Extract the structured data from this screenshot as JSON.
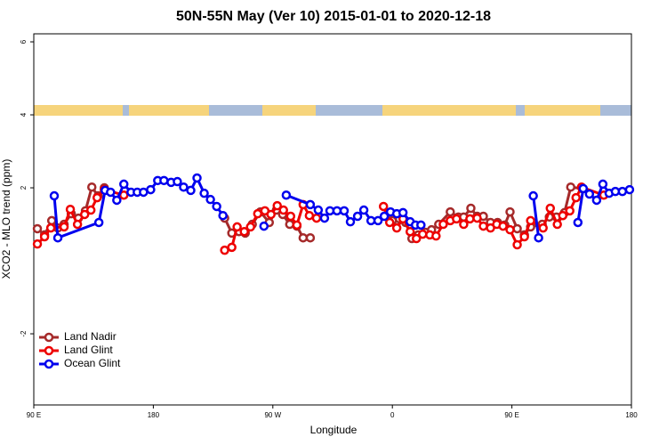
{
  "chart_data": {
    "type": "line",
    "title": "50N-55N May (Ver 10)   2015-01-01 to 2020-12-18",
    "x_label": "Longitude",
    "y_label": "XCO2 - MLO trend (ppm)",
    "xlim": [
      90,
      540
    ],
    "xticks": [
      {
        "value": 90,
        "label": "90 E"
      },
      {
        "value": 180,
        "label": "180"
      },
      {
        "value": 270,
        "label": "90 W"
      },
      {
        "value": 360,
        "label": "0"
      },
      {
        "value": 450,
        "label": "90 E"
      },
      {
        "value": 540,
        "label": "180"
      }
    ],
    "ylim": [
      -3.95,
      6.22
    ],
    "yticks": [
      -2,
      2,
      4,
      6
    ],
    "legend": "bottom-left",
    "series": [
      {
        "name": "Land Nadir",
        "color": "#a52a2a",
        "x": [
          92.7,
          98.1,
          103.5,
          108.1,
          112.8,
          118.2,
          123.6,
          128.9,
          133.7,
          138.4,
          143.1,
          null,
          233.7,
          239.1,
          244.5,
          249.2,
          254.5,
          260.6,
          267.3,
          272.7,
          277.4,
          282.7,
          288.1,
          292.8,
          298.2,
          null,
          354.6,
          360.0,
          365.3,
          370.0,
          374.7,
          379.5,
          384.8,
          389.5,
          394.9,
          403.6,
          409.7,
          413.7,
          419.1,
          423.8,
          428.5,
          433.9,
          439.2,
          444.6,
          448.6,
          454.0,
          459.4,
          464.1,
          472.8,
          478.2,
          483.6,
          489.6,
          494.3,
          503.0
        ],
        "values": [
          0.88,
          0.71,
          1.1,
          0.9,
          1.0,
          1.29,
          1.17,
          1.37,
          2.02,
          1.78,
          2.0,
          null,
          1.17,
          0.76,
          0.8,
          0.76,
          1.0,
          1.34,
          1.05,
          1.39,
          1.27,
          1.0,
          0.95,
          0.63,
          0.63,
          null,
          1.22,
          1.1,
          1.15,
          1.05,
          0.61,
          0.71,
          0.78,
          0.85,
          1.0,
          1.34,
          1.2,
          1.2,
          1.44,
          1.22,
          1.22,
          1.05,
          1.05,
          0.98,
          1.34,
          0.88,
          0.71,
          0.93,
          1.0,
          1.2,
          1.2,
          1.32,
          2.02,
          1.98
        ]
      },
      {
        "name": "Land Glint",
        "color": "#ee0000",
        "x": [
          92.7,
          98.1,
          102.8,
          112.8,
          117.5,
          122.9,
          128.3,
          133.0,
          137.7,
          143.1,
          157.8,
          null,
          233.7,
          239.1,
          243.1,
          248.5,
          253.2,
          258.6,
          264.0,
          268.6,
          273.3,
          278.0,
          283.4,
          288.1,
          292.8,
          297.5,
          302.9,
          null,
          353.3,
          358.0,
          363.3,
          368.0,
          373.4,
          378.1,
          382.8,
          388.2,
          392.9,
          398.3,
          403.6,
          408.3,
          413.7,
          418.4,
          423.8,
          428.5,
          433.9,
          438.6,
          443.3,
          448.6,
          454.0,
          459.4,
          464.1,
          473.5,
          478.9,
          484.2,
          488.3,
          493.6,
          498.3,
          502.4,
          519.2
        ],
        "values": [
          0.46,
          0.66,
          0.9,
          0.93,
          1.41,
          1.0,
          1.27,
          1.39,
          1.73,
          1.95,
          1.8,
          null,
          0.29,
          0.37,
          0.93,
          0.8,
          0.93,
          1.29,
          1.37,
          1.27,
          1.51,
          1.39,
          1.22,
          0.98,
          1.54,
          1.24,
          1.17,
          null,
          1.49,
          1.05,
          0.9,
          1.15,
          0.8,
          0.61,
          0.73,
          0.71,
          0.68,
          1.0,
          1.1,
          1.15,
          1.0,
          1.15,
          1.17,
          0.95,
          0.9,
          1.0,
          0.95,
          0.85,
          0.44,
          0.66,
          1.1,
          0.9,
          1.44,
          1.0,
          1.24,
          1.37,
          1.73,
          2.02,
          1.8
        ]
      },
      {
        "name": "Ocean Glint",
        "color": "#0000ee",
        "x": [
          105.4,
          108.1,
          139.0,
          143.7,
          147.8,
          152.5,
          157.8,
          163.2,
          167.9,
          172.6,
          178.0,
          183.3,
          188.0,
          193.4,
          198.1,
          202.8,
          208.2,
          212.9,
          218.3,
          223.0,
          227.7,
          232.4,
          null,
          263.3,
          null,
          280.1,
          298.2,
          304.2,
          308.9,
          313.0,
          318.3,
          323.7,
          328.4,
          333.8,
          338.5,
          343.9,
          349.2,
          353.9,
          358.6,
          363.3,
          368.0,
          373.4,
          377.4,
          381.5,
          null,
          466.1,
          470.1,
          null,
          499.7,
          503.7,
          508.4,
          513.8,
          518.5,
          523.2,
          527.9,
          533.2,
          538.6
        ],
        "values": [
          1.78,
          0.63,
          1.05,
          1.93,
          1.88,
          1.66,
          2.1,
          1.88,
          1.88,
          1.88,
          1.95,
          2.2,
          2.2,
          2.15,
          2.17,
          2.02,
          1.93,
          2.27,
          1.85,
          1.68,
          1.49,
          1.24,
          null,
          0.95,
          null,
          1.8,
          1.54,
          1.39,
          1.17,
          1.37,
          1.37,
          1.37,
          1.07,
          1.22,
          1.39,
          1.1,
          1.1,
          1.22,
          1.34,
          1.29,
          1.32,
          1.07,
          0.98,
          0.98,
          null,
          1.78,
          0.63,
          null,
          1.05,
          1.98,
          1.83,
          1.66,
          2.1,
          1.85,
          1.9,
          1.9,
          1.95
        ]
      }
    ]
  }
}
